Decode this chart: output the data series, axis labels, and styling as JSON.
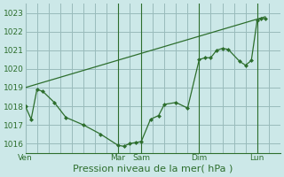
{
  "background_color": "#cce8e8",
  "grid_color": "#99bbbb",
  "line_color": "#2d6e2d",
  "xlabel": "Pression niveau de la mer( hPa )",
  "ylim": [
    1015.5,
    1023.5
  ],
  "yticks": [
    1016,
    1017,
    1018,
    1019,
    1020,
    1021,
    1022,
    1023
  ],
  "day_labels": [
    "Ven",
    "Mar",
    "Sam",
    "Dim",
    "Lun"
  ],
  "day_positions": [
    0,
    8,
    10,
    15,
    20
  ],
  "xlim": [
    0,
    22
  ],
  "vgrid_positions": [
    0,
    1,
    2,
    3,
    4,
    5,
    6,
    7,
    8,
    9,
    10,
    11,
    12,
    13,
    14,
    15,
    16,
    17,
    18,
    19,
    20,
    21,
    22
  ],
  "measured_x": [
    0,
    0.5,
    1.0,
    1.5,
    2.5,
    3.5,
    5.0,
    6.5,
    8.0,
    8.5,
    9.0,
    9.5,
    10.0,
    10.8,
    11.5,
    12.0,
    13.0,
    14.0,
    15.0,
    15.5,
    16.0,
    16.5,
    17.0,
    17.5,
    18.5,
    19.0,
    19.5,
    20.0,
    20.3,
    20.7
  ],
  "measured_y": [
    1018.0,
    1017.3,
    1018.9,
    1018.8,
    1018.2,
    1017.4,
    1017.0,
    1016.5,
    1015.9,
    1015.85,
    1016.0,
    1016.05,
    1016.1,
    1017.3,
    1017.5,
    1018.1,
    1018.2,
    1017.9,
    1020.5,
    1020.6,
    1020.6,
    1021.0,
    1021.1,
    1021.05,
    1020.4,
    1020.2,
    1020.45,
    1022.6,
    1022.7,
    1022.7
  ],
  "trend_x": [
    0,
    20.7
  ],
  "trend_y": [
    1019.0,
    1022.8
  ],
  "marker_size": 2.5,
  "tick_labelsize": 6.5,
  "xlabel_fontsize": 8
}
